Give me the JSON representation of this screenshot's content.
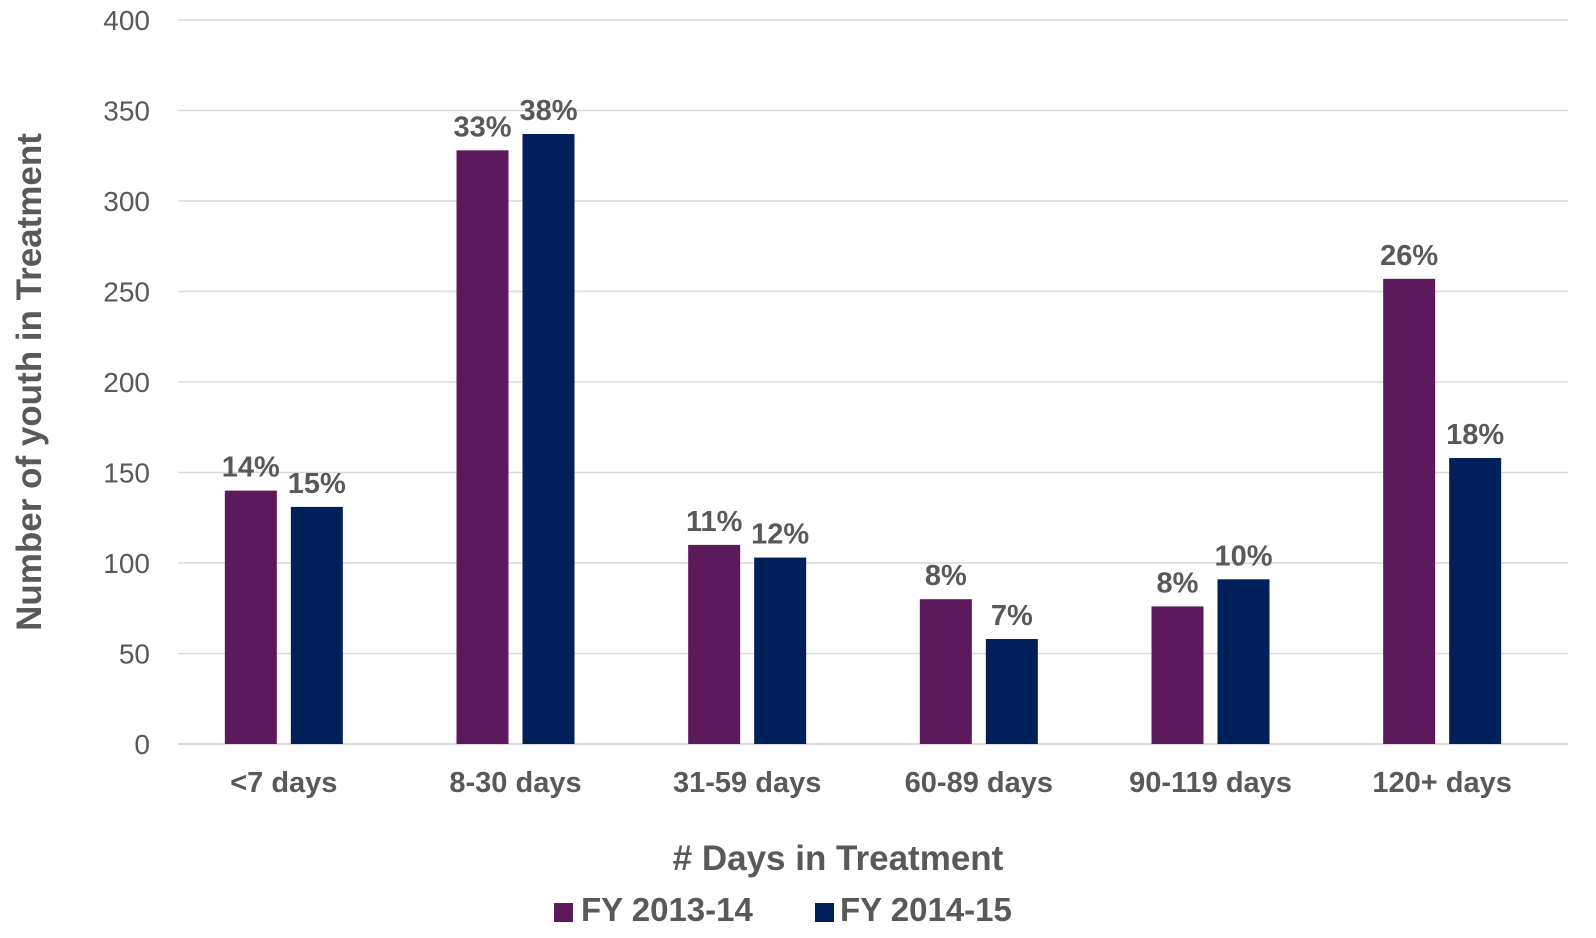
{
  "chart_data": {
    "type": "bar",
    "title": "",
    "xlabel": "# Days in Treatment",
    "ylabel": "Number of  youth in Treatment",
    "ylim": [
      0,
      400
    ],
    "yticks": [
      0,
      50,
      100,
      150,
      200,
      250,
      300,
      350,
      400
    ],
    "grid": true,
    "legend_position": "bottom",
    "categories": [
      "<7 days",
      "8-30 days",
      "31-59 days",
      "60-89 days",
      "90-119 days",
      "120+ days"
    ],
    "series": [
      {
        "name": "FY 2013-14",
        "color": "#5c1a5c",
        "values": [
          140,
          328,
          110,
          80,
          76,
          257
        ],
        "labels": [
          "14%",
          "33%",
          "11%",
          "8%",
          "8%",
          "26%"
        ]
      },
      {
        "name": "FY 2014-15",
        "color": "#00205b",
        "values": [
          131,
          337,
          103,
          58,
          91,
          158
        ],
        "labels": [
          "15%",
          "38%",
          "12%",
          "7%",
          "10%",
          "18%"
        ]
      }
    ]
  }
}
